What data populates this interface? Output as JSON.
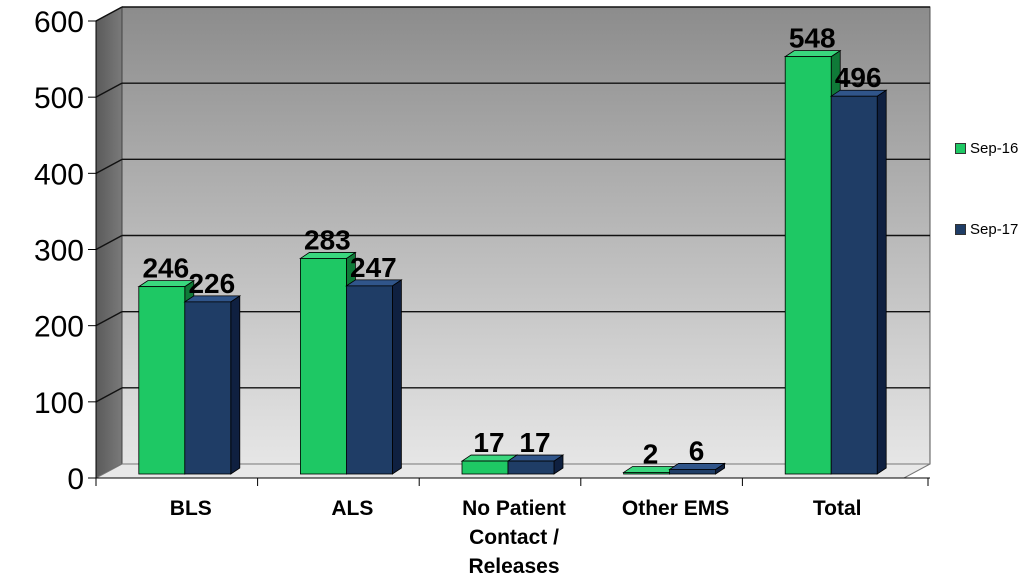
{
  "chart_data": {
    "type": "bar",
    "categories": [
      "BLS",
      "ALS",
      "No Patient Contact / Releases",
      "Other EMS",
      "Total"
    ],
    "category_lines": [
      [
        "BLS"
      ],
      [
        "ALS"
      ],
      [
        "No Patient",
        "Contact /",
        "Releases"
      ],
      [
        "Other EMS"
      ],
      [
        "Total"
      ]
    ],
    "series": [
      {
        "name": "Sep-16",
        "values": [
          246,
          283,
          17,
          2,
          548
        ],
        "color": "#1ec864",
        "side_color": "#0f7a38",
        "top_color": "#3ad77e"
      },
      {
        "name": "Sep-17",
        "values": [
          226,
          247,
          17,
          6,
          496
        ],
        "color": "#1f3d66",
        "side_color": "#0f2040",
        "top_color": "#30558a"
      }
    ],
    "ylim": [
      0,
      600
    ],
    "yticks": [
      0,
      100,
      200,
      300,
      400,
      500,
      600
    ],
    "grid": true,
    "legend_position": "right",
    "title": "",
    "xlabel": "",
    "ylabel": ""
  }
}
